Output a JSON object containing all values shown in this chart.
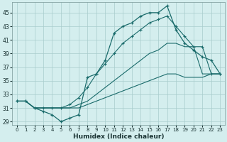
{
  "xlabel": "Humidex (Indice chaleur)",
  "xlim": [
    -0.5,
    23.5
  ],
  "ylim": [
    28.5,
    46.5
  ],
  "yticks": [
    29,
    31,
    33,
    35,
    37,
    39,
    41,
    43,
    45
  ],
  "xticks": [
    0,
    1,
    2,
    3,
    4,
    5,
    6,
    7,
    8,
    9,
    10,
    11,
    12,
    13,
    14,
    15,
    16,
    17,
    18,
    19,
    20,
    21,
    22,
    23
  ],
  "background_color": "#d4eeee",
  "grid_color": "#a8cccc",
  "line_color": "#1a6b6b",
  "line1_y": [
    32,
    32,
    31,
    30.5,
    30,
    29,
    29.5,
    30,
    35.5,
    36,
    38,
    42,
    43,
    43.5,
    44.5,
    45.0,
    45.0,
    46,
    42.5,
    40.5,
    39.5,
    38.5,
    38,
    36
  ],
  "line2_y": [
    32,
    32,
    31,
    31,
    31,
    31,
    31.5,
    32.5,
    34,
    36,
    37.5,
    39,
    40.5,
    41.5,
    42.5,
    43.5,
    44,
    44.5,
    43,
    41.5,
    40,
    40,
    36,
    36
  ],
  "line3_y": [
    32,
    32,
    31,
    31,
    31,
    31,
    31,
    31.5,
    32,
    33,
    34,
    35,
    36,
    37,
    38,
    39,
    39.5,
    40.5,
    40.5,
    40,
    40,
    36,
    36,
    36
  ],
  "line4_y": [
    32,
    32,
    31,
    31,
    31,
    31,
    31,
    31,
    31.5,
    32,
    32.5,
    33,
    33.5,
    34,
    34.5,
    35,
    35.5,
    36,
    36,
    35.5,
    35.5,
    35.5,
    36,
    36
  ]
}
